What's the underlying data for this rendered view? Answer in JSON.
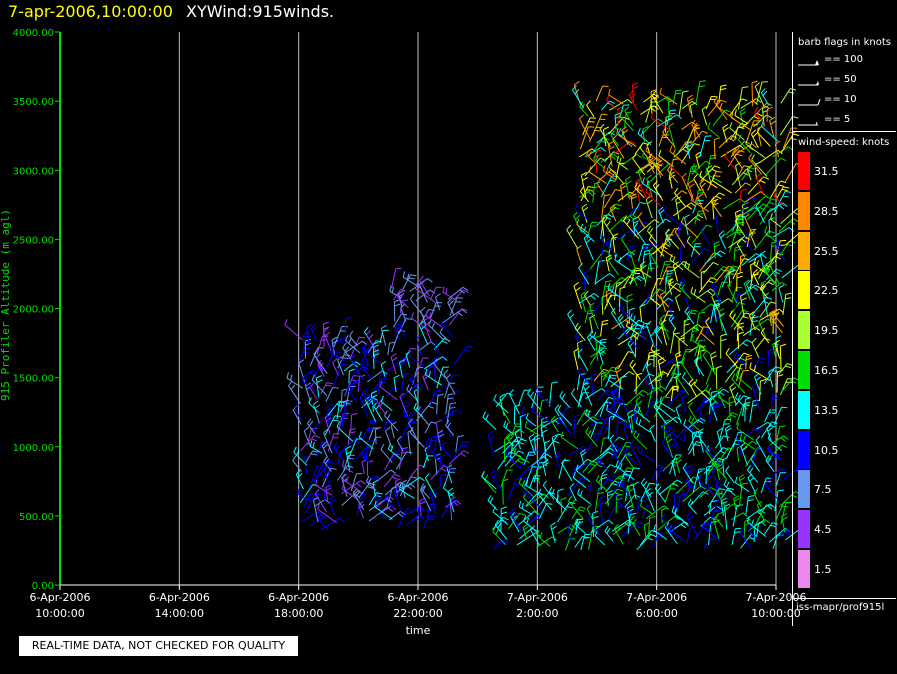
{
  "header": {
    "time": "7-apr-2006,10:00:00",
    "title": "XYWind:915winds."
  },
  "notice": "REAL-TIME DATA, NOT CHECKED FOR QUALITY",
  "legend": {
    "barb_title": "barb flags in knots",
    "flags": [
      "== 100",
      "== 50",
      "== 10",
      "== 5"
    ],
    "speed_title": "wind-speed: knots",
    "speed_bins": [
      {
        "label": "31.5",
        "color": "#ff0000"
      },
      {
        "label": "28.5",
        "color": "#ff8800"
      },
      {
        "label": "25.5",
        "color": "#ffaa00"
      },
      {
        "label": "22.5",
        "color": "#ffff00"
      },
      {
        "label": "19.5",
        "color": "#aaff33"
      },
      {
        "label": "16.5",
        "color": "#00dd00"
      },
      {
        "label": "13.5",
        "color": "#00ffff"
      },
      {
        "label": "10.5",
        "color": "#0000ff"
      },
      {
        "label": "7.5",
        "color": "#6699ee"
      },
      {
        "label": "4.5",
        "color": "#9933ff"
      },
      {
        "label": "1.5",
        "color": "#ee88ee"
      }
    ],
    "station": "iss-mapr/prof915l"
  },
  "chart_data": {
    "type": "scatter",
    "title": "XYWind:915winds.",
    "xlabel": "time",
    "ylabel": "915 Profiler Altitude (m agl)",
    "ylim": [
      0,
      4000
    ],
    "yticks": [
      "0.00",
      "500.00",
      "1000.00",
      "1500.00",
      "2000.00",
      "2500.00",
      "3000.00",
      "3500.00",
      "4000.00"
    ],
    "xlim_hours": [
      0,
      24
    ],
    "xticks": [
      {
        "date": "6-Apr-2006",
        "time": "10:00:00"
      },
      {
        "date": "6-Apr-2006",
        "time": "14:00:00"
      },
      {
        "date": "6-Apr-2006",
        "time": "18:00:00"
      },
      {
        "date": "6-Apr-2006",
        "time": "22:00:00"
      },
      {
        "date": "7-Apr-2006",
        "time": "2:00:00"
      },
      {
        "date": "7-Apr-2006",
        "time": "6:00:00"
      },
      {
        "date": "7-Apr-2006",
        "time": "10:00:00"
      }
    ],
    "grid": "vertical at each x tick",
    "marker": "wind barbs colored by wind speed (knots)",
    "data_regions": [
      {
        "start": "6-Apr-2006 18:00",
        "end": "6-Apr-2006 23:20",
        "alt_min": 400,
        "alt_max": 1800,
        "dominant_speed_knots": "4.5-13.5"
      },
      {
        "start": "6-Apr-2006 21:00",
        "end": "6-Apr-2006 23:20",
        "alt_min": 1800,
        "alt_max": 2150,
        "dominant_speed_knots": "4.5-7.5"
      },
      {
        "start": "7-Apr-2006 0:30",
        "end": "7-Apr-2006 10:20",
        "alt_min": 250,
        "alt_max": 1300,
        "dominant_speed_knots": "10.5-16.5"
      },
      {
        "start": "7-Apr-2006 3:20",
        "end": "7-Apr-2006 10:20",
        "alt_min": 1300,
        "alt_max": 2700,
        "dominant_speed_knots": "10.5-25.5"
      },
      {
        "start": "7-Apr-2006 3:20",
        "end": "7-Apr-2006 10:20",
        "alt_min": 2700,
        "alt_max": 3500,
        "dominant_speed_knots": "13.5-31.5"
      }
    ]
  }
}
